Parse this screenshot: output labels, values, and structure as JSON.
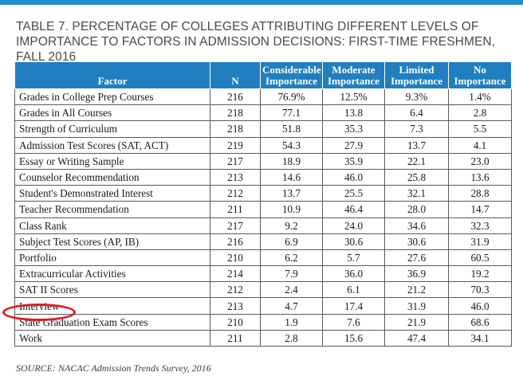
{
  "title": "TABLE 7. PERCENTAGE OF COLLEGES ATTRIBUTING DIFFERENT LEVELS OF IMPORTANCE TO FACTORS IN ADMISSION DECISIONS: FIRST-TIME FRESHMEN, FALL 2016",
  "headers": [
    "Factor",
    "N",
    "Considerable Importance",
    "Moderate Importance",
    "Limited Importance",
    "No Importance"
  ],
  "rows": [
    {
      "factor": "Grades in College Prep Courses",
      "n": "216",
      "considerable": "76.9%",
      "moderate": "12.5%",
      "limited": "9.3%",
      "none": "1.4%"
    },
    {
      "factor": "Grades in All Courses",
      "n": "218",
      "considerable": "77.1",
      "moderate": "13.8",
      "limited": "6.4",
      "none": "2.8"
    },
    {
      "factor": "Strength of Curriculum",
      "n": "218",
      "considerable": "51.8",
      "moderate": "35.3",
      "limited": "7.3",
      "none": "5.5"
    },
    {
      "factor": "Admission Test Scores (SAT, ACT)",
      "n": "219",
      "considerable": "54.3",
      "moderate": "27.9",
      "limited": "13.7",
      "none": "4.1"
    },
    {
      "factor": "Essay or Writing Sample",
      "n": "217",
      "considerable": "18.9",
      "moderate": "35.9",
      "limited": "22.1",
      "none": "23.0"
    },
    {
      "factor": "Counselor Recommendation",
      "n": "213",
      "considerable": "14.6",
      "moderate": "46.0",
      "limited": "25.8",
      "none": "13.6"
    },
    {
      "factor": "Student's Demonstrated Interest",
      "n": "212",
      "considerable": "13.7",
      "moderate": "25.5",
      "limited": "32.1",
      "none": "28.8"
    },
    {
      "factor": "Teacher Recommendation",
      "n": "211",
      "considerable": "10.9",
      "moderate": "46.4",
      "limited": "28.0",
      "none": "14.7"
    },
    {
      "factor": "Class Rank",
      "n": "217",
      "considerable": "9.2",
      "moderate": "24.0",
      "limited": "34.6",
      "none": "32.3"
    },
    {
      "factor": "Subject Test Scores (AP, IB)",
      "n": "216",
      "considerable": "6.9",
      "moderate": "30.6",
      "limited": "30.6",
      "none": "31.9"
    },
    {
      "factor": "Portfolio",
      "n": "210",
      "considerable": "6.2",
      "moderate": "5.7",
      "limited": "27.6",
      "none": "60.5"
    },
    {
      "factor": "Extracurricular Activities",
      "n": "214",
      "considerable": "7.9",
      "moderate": "36.0",
      "limited": "36.9",
      "none": "19.2"
    },
    {
      "factor": "SAT II Scores",
      "n": "212",
      "considerable": "2.4",
      "moderate": "6.1",
      "limited": "21.2",
      "none": "70.3"
    },
    {
      "factor": "Interview",
      "n": "213",
      "considerable": "4.7",
      "moderate": "17.4",
      "limited": "31.9",
      "none": "46.0"
    },
    {
      "factor": "State Graduation Exam Scores",
      "n": "210",
      "considerable": "1.9",
      "moderate": "7.6",
      "limited": "21.9",
      "none": "68.6"
    },
    {
      "factor": "Work",
      "n": "211",
      "considerable": "2.8",
      "moderate": "15.6",
      "limited": "47.4",
      "none": "34.1"
    }
  ],
  "source": "SOURCE: NACAC Admission Trends Survey, 2016",
  "colors": {
    "header_bg": "#1f7fc0",
    "accent_line": "#1f8fce",
    "highlight_circle": "#d42020"
  }
}
